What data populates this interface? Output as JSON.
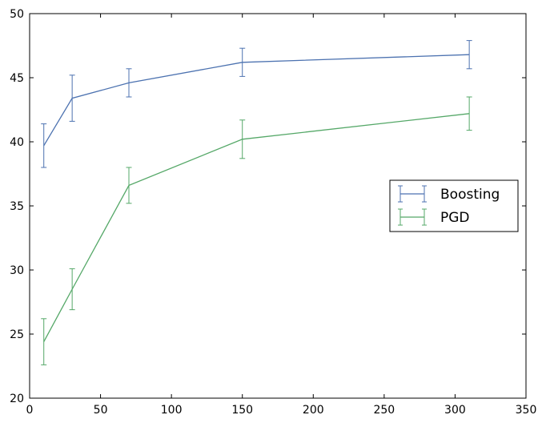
{
  "chart_data": {
    "type": "line",
    "title": "",
    "xlabel": "",
    "ylabel": "",
    "xlim": [
      0,
      350
    ],
    "ylim": [
      20,
      50
    ],
    "xticks": [
      0,
      50,
      100,
      150,
      200,
      250,
      300,
      350
    ],
    "yticks": [
      20,
      25,
      30,
      35,
      40,
      45,
      50
    ],
    "grid": false,
    "error_bars": true,
    "legend_position": "center-right",
    "series": [
      {
        "name": "Boosting",
        "color": "#4c72b0",
        "x": [
          10,
          30,
          70,
          150,
          310
        ],
        "y": [
          39.7,
          43.4,
          44.6,
          46.2,
          46.8
        ],
        "err": [
          1.7,
          1.8,
          1.1,
          1.1,
          1.1
        ]
      },
      {
        "name": "PGD",
        "color": "#55a868",
        "x": [
          10,
          30,
          70,
          150,
          310
        ],
        "y": [
          24.4,
          28.5,
          36.6,
          40.2,
          42.2
        ],
        "err": [
          1.8,
          1.6,
          1.4,
          1.5,
          1.3
        ]
      }
    ]
  }
}
